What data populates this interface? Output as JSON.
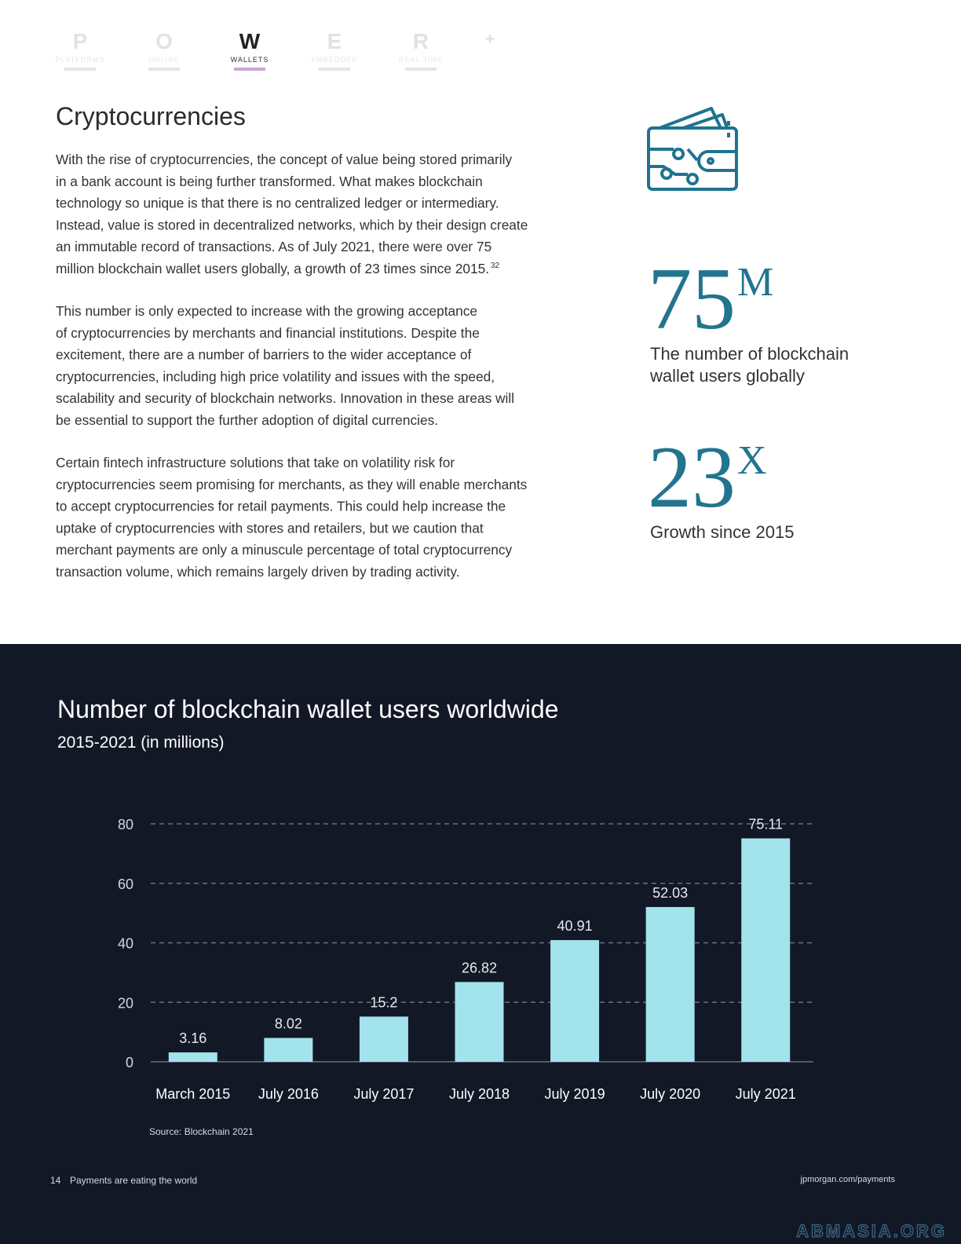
{
  "nav": [
    {
      "letter": "P",
      "label": "PLATFORMS"
    },
    {
      "letter": "O",
      "label": "ONLINE"
    },
    {
      "letter": "W",
      "label": "WALLETS"
    },
    {
      "letter": "E",
      "label": "EMBEDDED"
    },
    {
      "letter": "R",
      "label": "REAL TIME"
    }
  ],
  "nav_plus": "+",
  "section": {
    "title": "Cryptocurrencies",
    "paragraphs": [
      [
        "With the rise of cryptocurrencies, the concept of value being stored primarily",
        "in a bank account is being further transformed. What makes blockchain",
        "technology so unique is that there is no centralized ledger or intermediary.",
        "Instead, value is stored in decentralized networks, which by their design create",
        "an immutable record of transactions. As of July 2021, there were over 75",
        "million blockchain wallet users globally, a growth of 23 times since 2015."
      ],
      [
        "This number is only expected to increase with the growing acceptance",
        "of cryptocurrencies by merchants and financial institutions. Despite the",
        "excitement, there are a number of barriers to the wider acceptance of",
        "cryptocurrencies, including high price volatility and issues with the speed,",
        "scalability and security of blockchain networks. Innovation in these areas will",
        "be essential to support the further adoption of digital currencies."
      ],
      [
        "Certain fintech infrastructure solutions that take on volatility risk for",
        "cryptocurrencies seem promising for merchants, as they will enable merchants",
        "to accept cryptocurrencies for retail payments. This could help increase the",
        "uptake of cryptocurrencies with stores and retailers, but we caution that",
        "merchant payments are only a minuscule percentage of total cryptocurrency",
        "transaction volume, which remains largely driven by trading activity."
      ]
    ],
    "footnote": "32"
  },
  "stats": [
    {
      "value": "75",
      "unit": "M",
      "caption": [
        "The number of blockchain",
        "wallet users globally"
      ]
    },
    {
      "value": "23",
      "unit": "X",
      "caption": [
        "Growth since 2015"
      ]
    }
  ],
  "chart_data": {
    "type": "bar",
    "title": "Number of blockchain wallet users worldwide",
    "subtitle": "2015-2021 (in millions)",
    "categories": [
      "March 2015",
      "July 2016",
      "July 2017",
      "July 2018",
      "July 2019",
      "July 2020",
      "July 2021"
    ],
    "values": [
      3.16,
      8.02,
      15.2,
      26.82,
      40.91,
      52.03,
      75.11
    ],
    "color": "#a2e3ec",
    "ylim": [
      0,
      80
    ],
    "yticks": [
      0,
      20,
      40,
      60,
      80
    ],
    "grid": true,
    "source": "Source: Blockchain 2021"
  },
  "footer": {
    "page": "14",
    "title": "Payments are eating the world",
    "url": "jpmorgan.com/payments"
  },
  "watermark": "ABMASIA.ORG"
}
